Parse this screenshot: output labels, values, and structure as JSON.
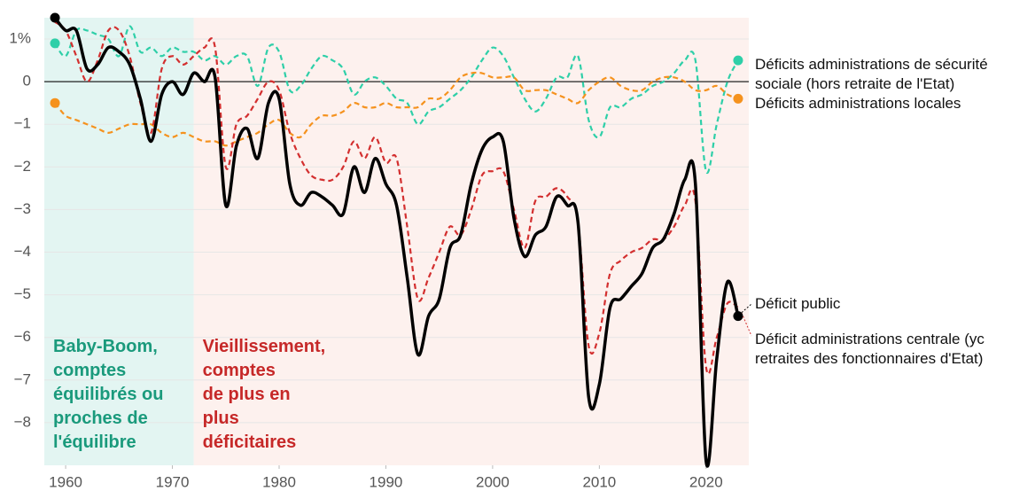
{
  "chart_data": {
    "type": "line",
    "xlim": [
      1958,
      2024
    ],
    "xticks": [
      1960,
      1970,
      1980,
      1990,
      2000,
      2010,
      2020
    ],
    "ylim": [
      -9,
      1.5
    ],
    "yticks": [
      {
        "value": 1,
        "label": "1%"
      },
      0,
      {
        "value": -1,
        "label": "−1"
      },
      {
        "value": -2,
        "label": "−2"
      },
      {
        "value": -3,
        "label": "−3"
      },
      {
        "value": -4,
        "label": "−4"
      },
      {
        "value": -5,
        "label": "−5"
      },
      {
        "value": -6,
        "label": "−6"
      },
      {
        "value": -7,
        "label": "−7"
      },
      {
        "value": -8,
        "label": "−8"
      }
    ],
    "grid": true,
    "regions": [
      {
        "start": 1958,
        "end": 1972,
        "color": "#e3f5f2",
        "label_color": "#1a9a7c",
        "label_lines": [
          "Baby-Boom,",
          "comptes",
          "équilibrés ou",
          "proches de",
          "l'équilibre"
        ]
      },
      {
        "start": 1972,
        "end": 2024,
        "color": "#fdf1ee",
        "label_color": "#c62828",
        "label_lines": [
          "Vieillissement,",
          "comptes",
          "de plus en",
          "plus",
          "déficitaires"
        ]
      }
    ],
    "x": [
      1959,
      1960,
      1961,
      1962,
      1963,
      1964,
      1965,
      1966,
      1967,
      1968,
      1969,
      1970,
      1971,
      1972,
      1973,
      1974,
      1975,
      1976,
      1977,
      1978,
      1979,
      1980,
      1981,
      1982,
      1983,
      1984,
      1985,
      1986,
      1987,
      1988,
      1989,
      1990,
      1991,
      1992,
      1993,
      1994,
      1995,
      1996,
      1997,
      1998,
      1999,
      2000,
      2001,
      2002,
      2003,
      2004,
      2005,
      2006,
      2007,
      2008,
      2009,
      2010,
      2011,
      2012,
      2013,
      2014,
      2015,
      2016,
      2017,
      2018,
      2019,
      2020,
      2021,
      2022,
      2023
    ],
    "series": [
      {
        "name": "Déficits administrations de sécurité sociale (hors retraite de l'Etat)",
        "color": "#2ecfa8",
        "dashed": true,
        "end_dots": true,
        "values": [
          0.9,
          0.6,
          1.2,
          1.2,
          1.1,
          1.0,
          0.6,
          1.3,
          0.7,
          0.8,
          0.6,
          0.8,
          0.7,
          0.7,
          0.5,
          0.6,
          0.4,
          0.6,
          0.6,
          -0.1,
          0.8,
          0.7,
          -0.2,
          -0.1,
          0.3,
          0.6,
          0.5,
          0.3,
          -0.3,
          0.0,
          0.1,
          -0.1,
          -0.4,
          -0.5,
          -1.0,
          -0.7,
          -0.6,
          -0.4,
          -0.2,
          0.1,
          0.5,
          0.8,
          0.6,
          0.1,
          -0.4,
          -0.7,
          -0.4,
          0.1,
          0.1,
          0.6,
          -0.9,
          -1.3,
          -0.6,
          -0.6,
          -0.4,
          -0.3,
          -0.1,
          0.0,
          0.2,
          0.5,
          0.5,
          -2.1,
          -1.0,
          0.0,
          0.5
        ]
      },
      {
        "name": "Déficits administrations locales",
        "color": "#f5921e",
        "dashed": true,
        "end_dots": true,
        "values": [
          -0.5,
          -0.8,
          -0.9,
          -1.0,
          -1.1,
          -1.2,
          -1.1,
          -1.0,
          -1.0,
          -1.0,
          -1.2,
          -1.3,
          -1.2,
          -1.3,
          -1.4,
          -1.4,
          -1.5,
          -1.4,
          -1.3,
          -1.2,
          -1.0,
          -0.9,
          -1.2,
          -1.3,
          -1.0,
          -0.8,
          -0.8,
          -0.7,
          -0.5,
          -0.6,
          -0.6,
          -0.5,
          -0.6,
          -0.6,
          -0.6,
          -0.4,
          -0.4,
          -0.2,
          0.1,
          0.2,
          0.2,
          0.1,
          0.1,
          0.1,
          -0.2,
          -0.2,
          -0.2,
          -0.3,
          -0.4,
          -0.5,
          -0.2,
          0.0,
          0.1,
          -0.1,
          -0.2,
          -0.2,
          0.0,
          0.1,
          0.1,
          0.0,
          -0.2,
          -0.2,
          -0.1,
          -0.3,
          -0.4
        ]
      },
      {
        "name": "Déficit administrations centrale (yc retraites des fonctionnaires d'Etat)",
        "color": "#d32f2f",
        "dashed": true,
        "end_dots": false,
        "values": [
          1.4,
          1.2,
          0.6,
          0.0,
          0.5,
          1.2,
          1.2,
          0.6,
          -0.5,
          -1.2,
          0.3,
          0.6,
          0.4,
          0.6,
          0.8,
          0.8,
          -2.0,
          -1.0,
          -0.8,
          -0.4,
          0.0,
          -0.2,
          -1.2,
          -1.8,
          -2.2,
          -2.3,
          -2.3,
          -2.0,
          -1.4,
          -1.8,
          -1.3,
          -1.9,
          -1.8,
          -3.4,
          -5.1,
          -4.6,
          -4.0,
          -3.4,
          -3.6,
          -3.0,
          -2.2,
          -2.1,
          -2.1,
          -3.0,
          -3.9,
          -2.8,
          -2.7,
          -2.5,
          -2.7,
          -3.3,
          -6.2,
          -5.9,
          -4.5,
          -4.2,
          -4.0,
          -3.9,
          -3.7,
          -3.7,
          -3.4,
          -2.9,
          -2.8,
          -6.7,
          -6.0,
          -5.2,
          -5.3
        ]
      },
      {
        "name": "Déficit public",
        "color": "#000000",
        "dashed": false,
        "end_dots": true,
        "values": [
          1.5,
          1.2,
          1.2,
          0.3,
          0.4,
          0.8,
          0.7,
          0.4,
          -0.4,
          -1.4,
          -0.3,
          0.0,
          -0.3,
          0.2,
          0.0,
          0.1,
          -2.9,
          -1.5,
          -1.1,
          -1.8,
          -0.5,
          -0.4,
          -2.4,
          -2.9,
          -2.6,
          -2.7,
          -2.9,
          -3.1,
          -2.0,
          -2.6,
          -1.8,
          -2.4,
          -2.9,
          -4.6,
          -6.4,
          -5.5,
          -5.1,
          -3.9,
          -3.6,
          -2.4,
          -1.6,
          -1.3,
          -1.4,
          -3.2,
          -4.1,
          -3.6,
          -3.4,
          -2.7,
          -2.9,
          -3.3,
          -7.4,
          -7.1,
          -5.3,
          -5.1,
          -4.8,
          -4.5,
          -3.9,
          -3.7,
          -3.1,
          -2.3,
          -2.4,
          -8.9,
          -6.5,
          -4.7,
          -5.5
        ]
      }
    ]
  }
}
